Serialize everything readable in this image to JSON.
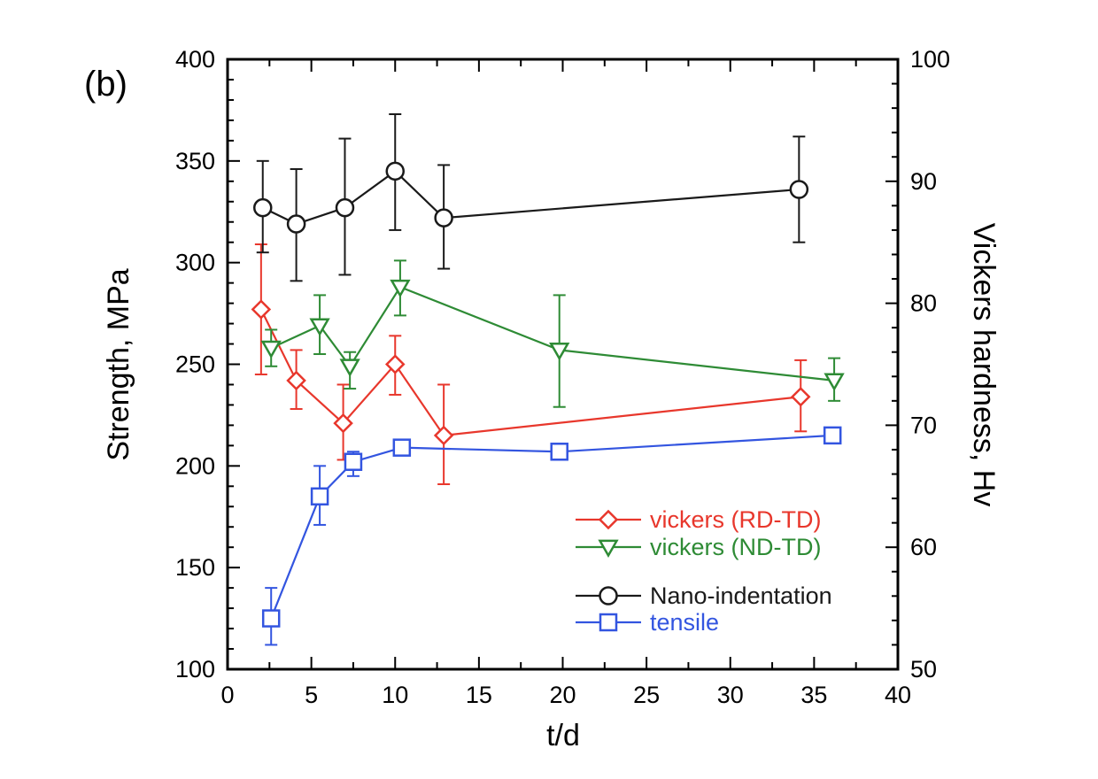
{
  "panel_label": "(b)",
  "chart_data": {
    "type": "line",
    "xlabel": "t/d",
    "ylabel": "Strength, MPa",
    "ylabel_right": "Vickers hardness, Hv",
    "xlim": [
      0,
      40
    ],
    "ylim": [
      100,
      400
    ],
    "ylim_right": [
      50,
      100
    ],
    "x_ticks": [
      "0",
      "5",
      "10",
      "15",
      "20",
      "25",
      "30",
      "35",
      "40"
    ],
    "y_ticks": [
      "100",
      "150",
      "200",
      "250",
      "300",
      "350",
      "400"
    ],
    "y_right_ticks": [
      "50",
      "60",
      "70",
      "80",
      "90",
      "100"
    ],
    "grid": false,
    "legend_position": "lower-right",
    "series": [
      {
        "name": "vickers (RD-TD)",
        "color": "#e8372c",
        "marker": "diamond",
        "x": [
          2.0,
          4.1,
          6.9,
          10.0,
          12.9,
          34.2
        ],
        "y": [
          277,
          242,
          221,
          250,
          215,
          234
        ],
        "err_low": [
          245,
          228,
          203,
          235,
          191,
          217
        ],
        "err_high": [
          309,
          257,
          240,
          264,
          240,
          252
        ]
      },
      {
        "name": "vickers (ND-TD)",
        "color": "#2e8b35",
        "marker": "triangle-down",
        "x": [
          2.6,
          5.5,
          7.3,
          10.3,
          19.8,
          36.2
        ],
        "y": [
          258,
          269,
          249,
          288,
          257,
          242
        ],
        "err_low": [
          249,
          255,
          238,
          274,
          229,
          232
        ],
        "err_high": [
          267,
          284,
          256,
          301,
          284,
          253
        ]
      },
      {
        "name": "Nano-indentation",
        "color": "#1a1a1a",
        "marker": "circle",
        "x": [
          2.1,
          4.1,
          7.0,
          10.0,
          12.9,
          34.1
        ],
        "y": [
          327,
          319,
          327,
          345,
          322,
          336
        ],
        "err_low": [
          305,
          291,
          294,
          316,
          297,
          310
        ],
        "err_high": [
          350,
          346,
          361,
          373,
          348,
          362
        ]
      },
      {
        "name": "tensile",
        "color": "#3355e0",
        "marker": "square",
        "x": [
          2.6,
          5.5,
          7.5,
          10.4,
          19.8,
          36.1
        ],
        "y": [
          125,
          185,
          202,
          209,
          207,
          215
        ],
        "err_low": [
          112,
          171,
          195,
          209,
          207,
          215
        ],
        "err_high": [
          140,
          200,
          207,
          209,
          207,
          215
        ]
      }
    ]
  }
}
